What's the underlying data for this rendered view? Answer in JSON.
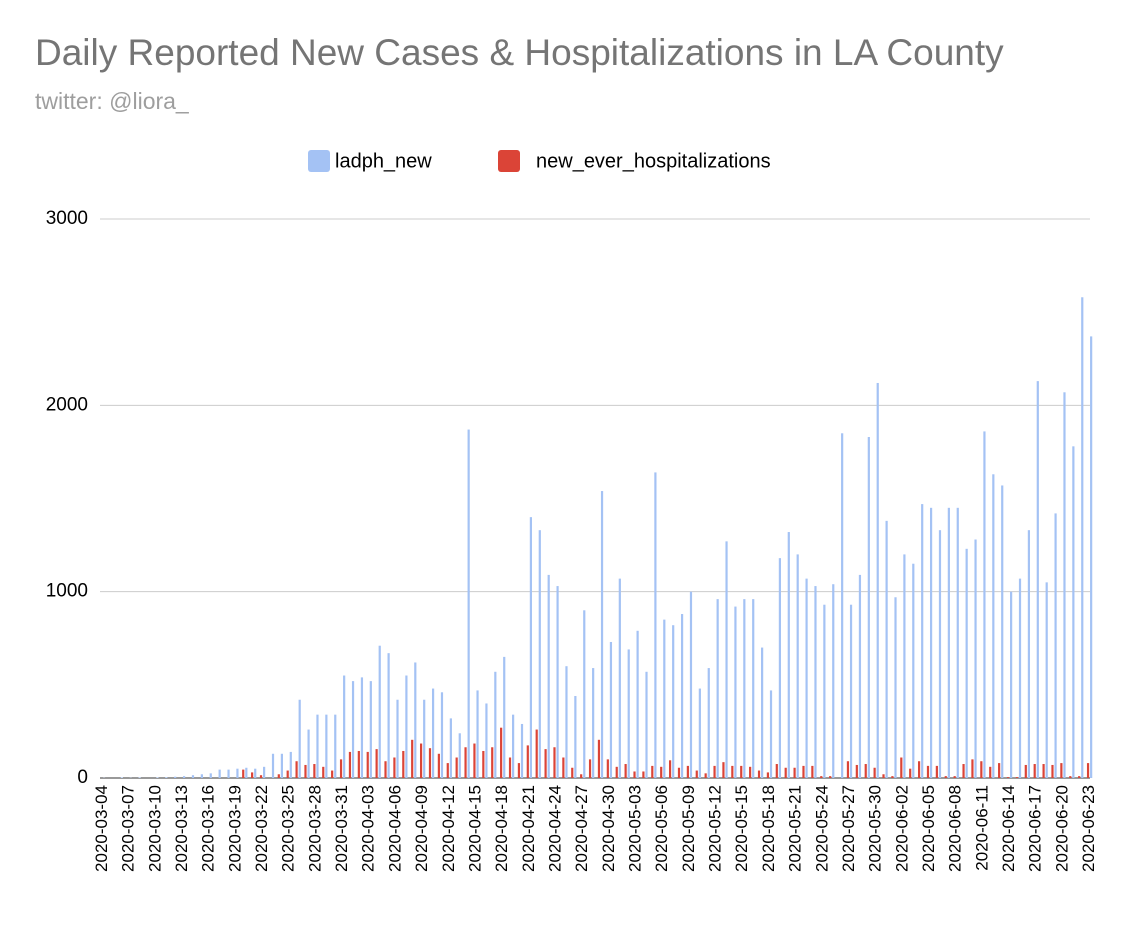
{
  "chart_data": {
    "type": "bar",
    "title": "Daily Reported New Cases & Hospitalizations in LA County",
    "subtitle": "twitter: @liora_",
    "categories": [
      "2020-03-04",
      null,
      null,
      "2020-03-07",
      null,
      null,
      "2020-03-10",
      null,
      null,
      "2020-03-13",
      null,
      null,
      "2020-03-16",
      null,
      null,
      "2020-03-19",
      null,
      null,
      "2020-03-22",
      null,
      null,
      "2020-03-25",
      null,
      null,
      "2020-03-28",
      null,
      null,
      "2020-03-31",
      null,
      null,
      "2020-04-03",
      null,
      null,
      "2020-04-06",
      null,
      null,
      "2020-04-09",
      null,
      null,
      "2020-04-12",
      null,
      null,
      "2020-04-15",
      null,
      null,
      "2020-04-18",
      null,
      null,
      "2020-04-21",
      null,
      null,
      "2020-04-24",
      null,
      null,
      "2020-04-27",
      null,
      null,
      "2020-04-30",
      null,
      null,
      "2020-05-03",
      null,
      null,
      "2020-05-06",
      null,
      null,
      "2020-05-09",
      null,
      null,
      "2020-05-12",
      null,
      null,
      "2020-05-15",
      null,
      null,
      "2020-05-18",
      null,
      null,
      "2020-05-21",
      null,
      null,
      "2020-05-24",
      null,
      null,
      "2020-05-27",
      null,
      null,
      "2020-05-30",
      null,
      null,
      "2020-06-02",
      null,
      null,
      "2020-06-05",
      null,
      null,
      "2020-06-08",
      null,
      null,
      "2020-06-11",
      null,
      null,
      "2020-06-14",
      null,
      null,
      "2020-06-17",
      null,
      null,
      "2020-06-20",
      null,
      null,
      "2020-06-23"
    ],
    "series": [
      {
        "name": "ladph_new",
        "color": "#a4c2f4",
        "values": [
          1,
          0,
          3,
          1,
          3,
          0,
          3,
          4,
          7,
          10,
          15,
          20,
          25,
          45,
          45,
          50,
          55,
          50,
          60,
          130,
          130,
          140,
          420,
          260,
          340,
          340,
          340,
          550,
          520,
          540,
          520,
          710,
          670,
          420,
          550,
          620,
          420,
          480,
          460,
          320,
          240,
          1870,
          470,
          400,
          570,
          650,
          340,
          290,
          1400,
          1330,
          1090,
          1030,
          600,
          440,
          900,
          590,
          1540,
          730,
          1070,
          690,
          790,
          570,
          1640,
          850,
          820,
          880,
          1000,
          480,
          590,
          960,
          1270,
          920,
          960,
          960,
          700,
          470,
          1180,
          1320,
          1200,
          1070,
          1030,
          930,
          1040,
          1850,
          930,
          1090,
          1830,
          2120,
          1380,
          970,
          1200,
          1150,
          1470,
          1450,
          1330,
          1450,
          1450,
          1230,
          1280,
          1860,
          1630,
          1570,
          1000,
          1070,
          1330,
          2130,
          1050,
          1420,
          2070,
          1780,
          2580,
          2370
        ]
      },
      {
        "name": "new_ever_hospitalizations",
        "color": "#db4437",
        "values": [
          0,
          0,
          0,
          0,
          0,
          0,
          0,
          0,
          0,
          0,
          0,
          0,
          0,
          0,
          0,
          0,
          45,
          30,
          15,
          0,
          20,
          40,
          90,
          70,
          75,
          60,
          40,
          100,
          140,
          145,
          140,
          155,
          90,
          110,
          145,
          205,
          185,
          160,
          130,
          80,
          110,
          165,
          185,
          145,
          165,
          270,
          110,
          80,
          175,
          260,
          155,
          165,
          110,
          55,
          20,
          100,
          205,
          100,
          60,
          75,
          35,
          35,
          65,
          60,
          95,
          55,
          65,
          40,
          25,
          65,
          85,
          65,
          65,
          60,
          40,
          30,
          75,
          55,
          55,
          65,
          65,
          10,
          10,
          0,
          90,
          70,
          75,
          55,
          20,
          10,
          110,
          50,
          90,
          65,
          65,
          10,
          10,
          75,
          100,
          90,
          60,
          80,
          5,
          5,
          70,
          75,
          75,
          70,
          80,
          10,
          10,
          80
        ]
      }
    ],
    "ylim": [
      0,
      3000
    ],
    "yticks": [
      0,
      1000,
      2000,
      3000
    ],
    "grid": true,
    "legend": "top"
  }
}
